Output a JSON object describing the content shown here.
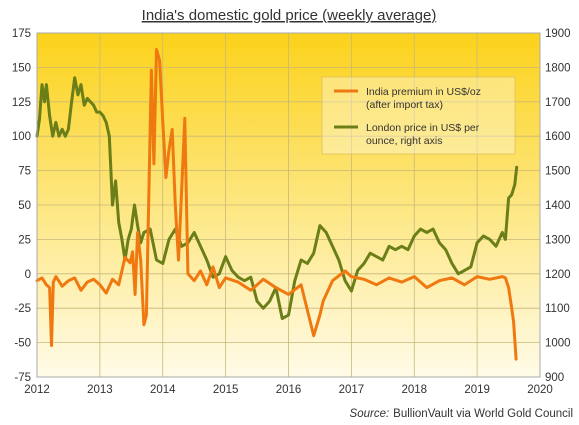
{
  "chart_data": {
    "type": "line",
    "title": "India's domestic gold price (weekly average)",
    "source_label": "Source:",
    "source_text": "BullionVault via World Gold Council",
    "x_ticks": [
      "2012",
      "2013",
      "2014",
      "2015",
      "2016",
      "2017",
      "2018",
      "2019",
      "2020"
    ],
    "xlim": [
      2012,
      2020
    ],
    "y_left": {
      "ylim": [
        -75,
        175
      ],
      "ticks": [
        175,
        150,
        125,
        100,
        75,
        50,
        25,
        0,
        -25,
        -50,
        -75
      ]
    },
    "y_right": {
      "ylim": [
        900,
        1900
      ],
      "ticks": [
        1900,
        1800,
        1700,
        1600,
        1500,
        1400,
        1300,
        1200,
        1100,
        1000,
        900
      ]
    },
    "grid": true,
    "legend_position": "top-right",
    "legend": [
      {
        "line1": "India premium in US$/oz",
        "line2": "(after import tax)"
      },
      {
        "line1": "London price in US$ per",
        "line2": "ounce, right axis"
      }
    ],
    "series": [
      {
        "name": "India premium in US$/oz (after import tax)",
        "axis": "left",
        "color": "#f07810",
        "x": [
          2012.0,
          2012.08,
          2012.15,
          2012.2,
          2012.23,
          2012.26,
          2012.3,
          2012.4,
          2012.5,
          2012.6,
          2012.7,
          2012.8,
          2012.9,
          2013.0,
          2013.1,
          2013.2,
          2013.3,
          2013.4,
          2013.48,
          2013.52,
          2013.56,
          2013.6,
          2013.65,
          2013.7,
          2013.74,
          2013.78,
          2013.82,
          2013.86,
          2013.9,
          2013.95,
          2014.0,
          2014.05,
          2014.1,
          2014.15,
          2014.2,
          2014.25,
          2014.3,
          2014.35,
          2014.4,
          2014.5,
          2014.6,
          2014.7,
          2014.8,
          2014.9,
          2015.0,
          2015.2,
          2015.4,
          2015.6,
          2015.8,
          2016.0,
          2016.2,
          2016.4,
          2016.5,
          2016.55,
          2016.7,
          2016.9,
          2017.0,
          2017.2,
          2017.4,
          2017.6,
          2017.8,
          2018.0,
          2018.2,
          2018.4,
          2018.6,
          2018.8,
          2019.0,
          2019.2,
          2019.4,
          2019.45,
          2019.5,
          2019.55,
          2019.58,
          2019.62
        ],
        "values": [
          -5,
          -3,
          -8,
          -10,
          -52,
          -6,
          -2,
          -9,
          -5,
          -3,
          -12,
          -6,
          -4,
          -8,
          -14,
          -4,
          -8,
          12,
          8,
          16,
          -15,
          30,
          10,
          -37,
          -30,
          60,
          148,
          80,
          163,
          155,
          110,
          70,
          90,
          105,
          50,
          10,
          60,
          113,
          0,
          -5,
          2,
          -8,
          5,
          -10,
          -3,
          -6,
          -12,
          -4,
          -10,
          -15,
          -8,
          -45,
          -30,
          -20,
          -5,
          2,
          -2,
          -4,
          -8,
          -3,
          -6,
          -2,
          -10,
          -5,
          -3,
          -8,
          -2,
          -4,
          -2,
          -3,
          -10,
          -25,
          -35,
          -62
        ]
      },
      {
        "name": "London price in US$ per ounce, right axis",
        "axis": "right",
        "color": "#6b7e18",
        "x": [
          2012.0,
          2012.04,
          2012.08,
          2012.12,
          2012.15,
          2012.2,
          2012.25,
          2012.3,
          2012.35,
          2012.4,
          2012.45,
          2012.5,
          2012.55,
          2012.6,
          2012.65,
          2012.7,
          2012.75,
          2012.8,
          2012.85,
          2012.9,
          2012.95,
          2013.0,
          2013.05,
          2013.1,
          2013.15,
          2013.2,
          2013.25,
          2013.3,
          2013.35,
          2013.4,
          2013.45,
          2013.5,
          2013.55,
          2013.6,
          2013.65,
          2013.7,
          2013.8,
          2013.9,
          2014.0,
          2014.1,
          2014.2,
          2014.3,
          2014.4,
          2014.5,
          2014.6,
          2014.7,
          2014.8,
          2014.9,
          2015.0,
          2015.1,
          2015.2,
          2015.3,
          2015.4,
          2015.5,
          2015.6,
          2015.7,
          2015.8,
          2015.9,
          2016.0,
          2016.1,
          2016.2,
          2016.3,
          2016.4,
          2016.5,
          2016.6,
          2016.7,
          2016.8,
          2016.9,
          2017.0,
          2017.1,
          2017.2,
          2017.3,
          2017.4,
          2017.5,
          2017.6,
          2017.7,
          2017.8,
          2017.9,
          2018.0,
          2018.1,
          2018.2,
          2018.3,
          2018.4,
          2018.5,
          2018.6,
          2018.7,
          2018.8,
          2018.9,
          2019.0,
          2019.1,
          2019.2,
          2019.3,
          2019.4,
          2019.45,
          2019.5,
          2019.55,
          2019.6,
          2019.63
        ],
        "values": [
          1600,
          1650,
          1750,
          1700,
          1750,
          1660,
          1600,
          1640,
          1600,
          1620,
          1600,
          1620,
          1700,
          1770,
          1720,
          1750,
          1690,
          1710,
          1700,
          1690,
          1670,
          1670,
          1660,
          1640,
          1600,
          1400,
          1470,
          1350,
          1300,
          1240,
          1300,
          1330,
          1400,
          1340,
          1290,
          1320,
          1330,
          1240,
          1230,
          1300,
          1330,
          1280,
          1290,
          1320,
          1280,
          1240,
          1190,
          1200,
          1250,
          1210,
          1190,
          1180,
          1190,
          1120,
          1100,
          1120,
          1160,
          1070,
          1080,
          1180,
          1240,
          1230,
          1260,
          1340,
          1320,
          1280,
          1240,
          1180,
          1150,
          1210,
          1230,
          1260,
          1250,
          1240,
          1280,
          1270,
          1280,
          1270,
          1310,
          1330,
          1320,
          1330,
          1290,
          1270,
          1230,
          1200,
          1210,
          1220,
          1290,
          1310,
          1300,
          1280,
          1320,
          1300,
          1420,
          1430,
          1460,
          1510
        ]
      }
    ]
  }
}
